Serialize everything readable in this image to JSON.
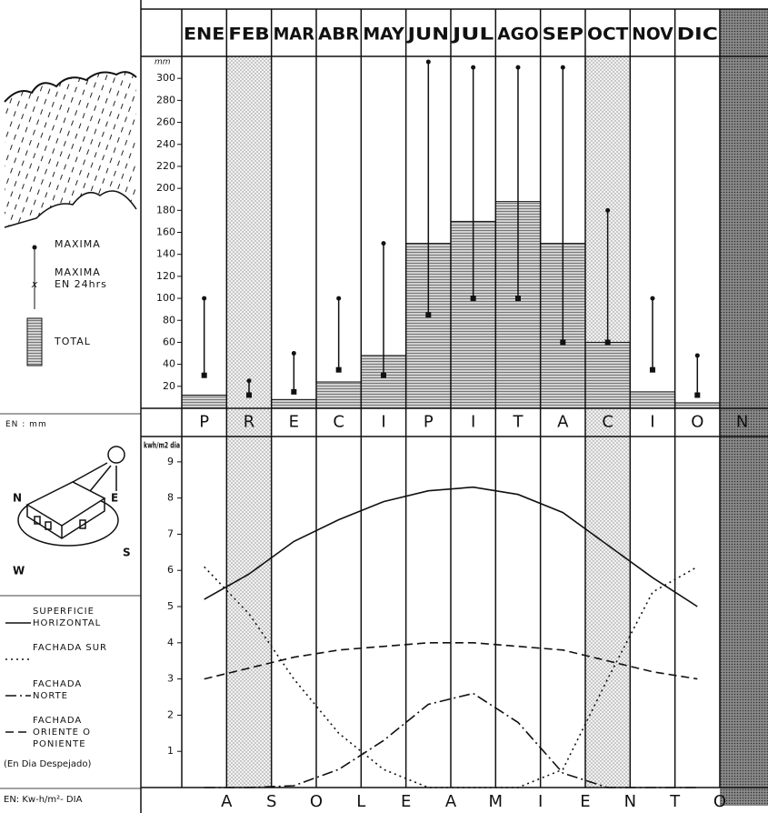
{
  "chart_data": [
    {
      "type": "bar",
      "unit": "EN : mm",
      "y_label": "mm",
      "categories": [
        "ENE",
        "FEB",
        "MAR",
        "ABR",
        "MAY",
        "JUN",
        "JUL",
        "AGO",
        "SEP",
        "OCT",
        "NOV",
        "DIC"
      ],
      "label_letters": [
        "P",
        "R",
        "E",
        "C",
        "I",
        "P",
        "I",
        "T",
        "A",
        "C",
        "I",
        "O",
        "N"
      ],
      "ylim": [
        0,
        320
      ],
      "yticks": [
        20,
        40,
        60,
        80,
        100,
        120,
        140,
        160,
        180,
        200,
        220,
        240,
        260,
        280,
        300
      ],
      "series": [
        {
          "name": "TOTAL",
          "color": "#9a9a9a",
          "values": [
            12,
            0,
            8,
            24,
            48,
            150,
            170,
            188,
            150,
            60,
            15,
            5
          ]
        },
        {
          "name": "MAXIMA",
          "color": "#111111",
          "values": [
            100,
            25,
            50,
            100,
            150,
            315,
            310,
            310,
            310,
            180,
            100,
            48
          ]
        },
        {
          "name": "MAXIMA EN 24hrs",
          "color": "#111111",
          "values": [
            30,
            12,
            15,
            35,
            30,
            85,
            100,
            100,
            60,
            60,
            35,
            12
          ]
        }
      ]
    },
    {
      "type": "line",
      "unit": "EN: Kw-h/m²- DIA",
      "y_label": "kwh/m2 dia",
      "note": "(En Dia Despejado)",
      "label_letters": [
        "A",
        "S",
        "O",
        "L",
        "E",
        "A",
        "M",
        "I",
        "E",
        "N",
        "T",
        "O"
      ],
      "ylim": [
        0,
        9.7
      ],
      "yticks": [
        1,
        2,
        3,
        4,
        5,
        6,
        7,
        8,
        9
      ],
      "series": [
        {
          "name": "SUPERFICIE HORIZONTAL",
          "color": "#111111",
          "dash": "solid",
          "values": [
            5.2,
            5.9,
            6.8,
            7.4,
            7.9,
            8.2,
            8.3,
            8.1,
            7.6,
            6.7,
            5.8,
            5.0
          ]
        },
        {
          "name": "FACHADA SUR",
          "color": "#111111",
          "dash": "dotted",
          "values": [
            6.1,
            4.8,
            3.0,
            1.5,
            0.5,
            0,
            0,
            0,
            0.5,
            3.0,
            5.4,
            6.1
          ]
        },
        {
          "name": "FACHADA NORTE",
          "color": "#111111",
          "dash": "dashdot",
          "values": [
            0,
            0,
            0.05,
            0.5,
            1.3,
            2.3,
            2.6,
            1.8,
            0.4,
            0,
            0,
            0
          ]
        },
        {
          "name": "FACHADA ORIENTE O PONIENTE",
          "color": "#111111",
          "dash": "dashed",
          "values": [
            3.0,
            3.3,
            3.6,
            3.8,
            3.9,
            4.0,
            4.0,
            3.9,
            3.8,
            3.5,
            3.2,
            3.0
          ]
        }
      ]
    }
  ],
  "icon_labels": [
    "N",
    "E",
    "W",
    "S"
  ]
}
